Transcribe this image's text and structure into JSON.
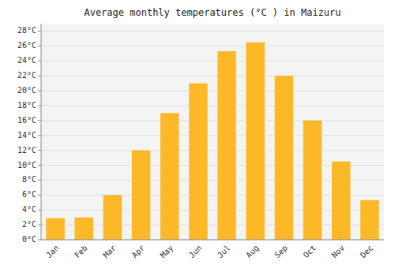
{
  "chart_data": {
    "type": "bar",
    "title": "Average monthly temperatures (°C ) in Maizuru",
    "categories": [
      "Jan",
      "Feb",
      "Mar",
      "Apr",
      "May",
      "Jun",
      "Jul",
      "Aug",
      "Sep",
      "Oct",
      "Nov",
      "Dec"
    ],
    "values": [
      2.9,
      3.0,
      6.0,
      12.0,
      17.0,
      21.0,
      25.3,
      26.5,
      22.0,
      16.0,
      10.5,
      5.3
    ],
    "color": "#FDB827",
    "ylim": [
      0,
      29
    ],
    "yticks": [
      {
        "value": 0,
        "label": "0°C"
      },
      {
        "value": 2,
        "label": "2°C"
      },
      {
        "value": 4,
        "label": "4°C"
      },
      {
        "value": 6,
        "label": "6°C"
      },
      {
        "value": 8,
        "label": "8°C"
      },
      {
        "value": 10,
        "label": "10°C"
      },
      {
        "value": 12,
        "label": "12°C"
      },
      {
        "value": 14,
        "label": "14°C"
      },
      {
        "value": 16,
        "label": "16°C"
      },
      {
        "value": 18,
        "label": "18°C"
      },
      {
        "value": 20,
        "label": "20°C"
      },
      {
        "value": 22,
        "label": "22°C"
      },
      {
        "value": 24,
        "label": "24°C"
      },
      {
        "value": 26,
        "label": "26°C"
      },
      {
        "value": 28,
        "label": "28°C"
      }
    ],
    "grid": true
  }
}
